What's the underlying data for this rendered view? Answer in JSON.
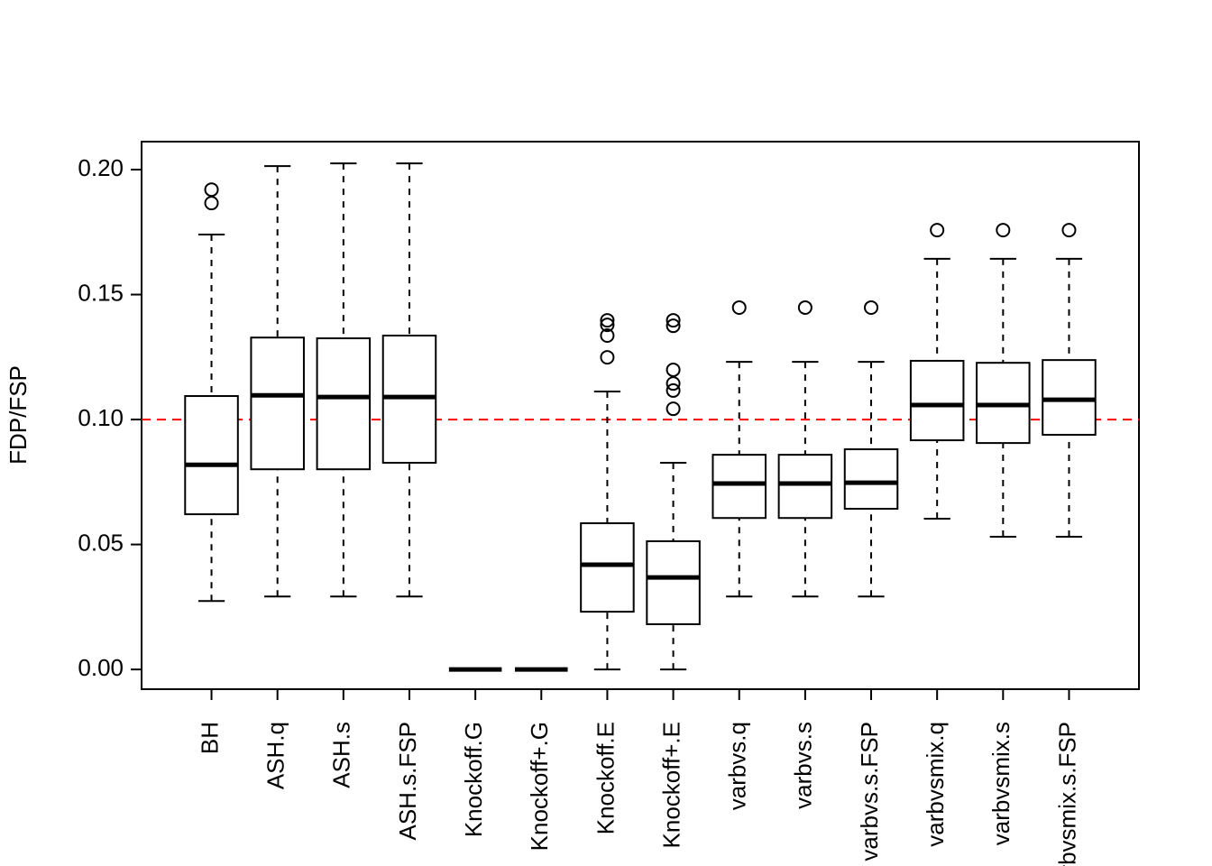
{
  "chart_data": {
    "type": "boxplot",
    "y_label": "FDP/FSP",
    "categories": [
      "BH",
      "ASH.q",
      "ASH.s",
      "ASH.s.FSP",
      "Knockoff.G",
      "Knockoff+.G",
      "Knockoff.E",
      "Knockoff+.E",
      "varbvs.q",
      "varbvs.s",
      "varbvs.s.FSP",
      "varbvsmix.q",
      "varbvsmix.s",
      "varbvsmix.s.FSP"
    ],
    "boxes": [
      {
        "min": 0.0274,
        "q1": 0.0621,
        "median": 0.0819,
        "q3": 0.1094,
        "max": 0.174,
        "outliers": [
          0.192,
          0.1866
        ]
      },
      {
        "min": 0.0292,
        "q1": 0.0801,
        "median": 0.1097,
        "q3": 0.1328,
        "max": 0.2014,
        "outliers": []
      },
      {
        "min": 0.0292,
        "q1": 0.0801,
        "median": 0.109,
        "q3": 0.1325,
        "max": 0.2025,
        "outliers": []
      },
      {
        "min": 0.0292,
        "q1": 0.0827,
        "median": 0.109,
        "q3": 0.1336,
        "max": 0.2025,
        "outliers": []
      },
      {
        "min": 0,
        "q1": 0,
        "median": 0,
        "q3": 0,
        "max": 0,
        "outliers": []
      },
      {
        "min": 0,
        "q1": 0,
        "median": 0,
        "q3": 0,
        "max": 0,
        "outliers": []
      },
      {
        "min": 0,
        "q1": 0.0231,
        "median": 0.0419,
        "q3": 0.0585,
        "max": 0.1112,
        "outliers": [
          0.1397,
          0.1379,
          0.1336,
          0.1249
        ]
      },
      {
        "min": 0,
        "q1": 0.0181,
        "median": 0.0368,
        "q3": 0.0513,
        "max": 0.0827,
        "outliers": [
          0.1397,
          0.1375,
          0.1199,
          0.1144,
          0.1116,
          0.1043
        ]
      },
      {
        "min": 0.0292,
        "q1": 0.0606,
        "median": 0.0744,
        "q3": 0.0859,
        "max": 0.1231,
        "outliers": [
          0.1448
        ]
      },
      {
        "min": 0.0292,
        "q1": 0.0606,
        "median": 0.0744,
        "q3": 0.0859,
        "max": 0.1231,
        "outliers": [
          0.1448
        ]
      },
      {
        "min": 0.0292,
        "q1": 0.0643,
        "median": 0.0747,
        "q3": 0.0881,
        "max": 0.1231,
        "outliers": [
          0.1448
        ]
      },
      {
        "min": 0.0603,
        "q1": 0.0917,
        "median": 0.1058,
        "q3": 0.1235,
        "max": 0.1643,
        "outliers": [
          0.1758
        ]
      },
      {
        "min": 0.0531,
        "q1": 0.0906,
        "median": 0.1058,
        "q3": 0.1227,
        "max": 0.1643,
        "outliers": [
          0.1758
        ]
      },
      {
        "min": 0.0531,
        "q1": 0.0939,
        "median": 0.1079,
        "q3": 0.1238,
        "max": 0.1643,
        "outliers": [
          0.1758
        ]
      }
    ],
    "color": "#000000",
    "hline": 0.1,
    "hline_color": "#ff0000",
    "ylim": [
      -0.0079,
      0.2112
    ],
    "yticks": [
      {
        "value": 0,
        "label": "0.00"
      },
      0.05,
      {
        "value": 0.1,
        "label": "0.10"
      },
      0.15,
      {
        "value": 0.2,
        "label": "0.20"
      }
    ]
  }
}
